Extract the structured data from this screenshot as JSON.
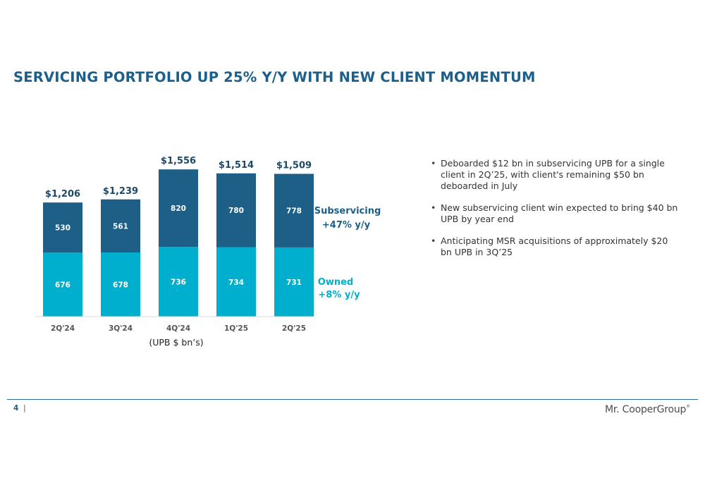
{
  "slide": {
    "title": "SERVICING PORTFOLIO UP 25% Y/Y WITH NEW CLIENT MOMENTUM"
  },
  "chart_data": {
    "type": "bar",
    "stacked": true,
    "categories": [
      "2Q'24",
      "3Q'24",
      "4Q'24",
      "1Q'25",
      "2Q'25"
    ],
    "series": [
      {
        "name": "Owned",
        "values": [
          676,
          678,
          736,
          734,
          731
        ],
        "value_labels": [
          "676",
          "678",
          "736",
          "734",
          "731"
        ],
        "color": "#00afcd"
      },
      {
        "name": "Subservicing",
        "values": [
          530,
          561,
          820,
          780,
          778
        ],
        "value_labels": [
          "530",
          "561",
          "820",
          "780",
          "778"
        ],
        "color": "#1d5f86"
      }
    ],
    "totals": [
      1206,
      1239,
      1556,
      1514,
      1509
    ],
    "total_labels": [
      "$1,206",
      "$1,239",
      "$1,556",
      "$1,514",
      "$1,509"
    ],
    "annotations": [
      {
        "series": "Subservicing",
        "name": "Subservicing",
        "change": "+47% y/y",
        "color": "#1d5f86"
      },
      {
        "series": "Owned",
        "name": "Owned",
        "change": "+8% y/y",
        "color": "#00afcd"
      }
    ],
    "xlabel": "(UPB $ bn’s)",
    "ylabel": "",
    "ylim": [
      0,
      1580
    ],
    "grid": false,
    "legend": "right"
  },
  "bullets": [
    "Deboarded $12 bn in subservicing UPB for a single client in 2Q’25, with client's remaining $50 bn deboarded in July",
    "New subservicing client win expected to bring $40 bn UPB by year end",
    "Anticipating MSR acquisitions of approximately $20 bn UPB in 3Q’25"
  ],
  "footer": {
    "page_number": "4",
    "separator": "|",
    "logo_text": "Mr. CooperGroup",
    "logo_mark": "®"
  },
  "colors": {
    "title": "#1b5f8c",
    "total_labels": "#1d4966",
    "owned": "#00afcd",
    "subservicing": "#1d5f86",
    "footer_rule": "#2a6f9a"
  }
}
